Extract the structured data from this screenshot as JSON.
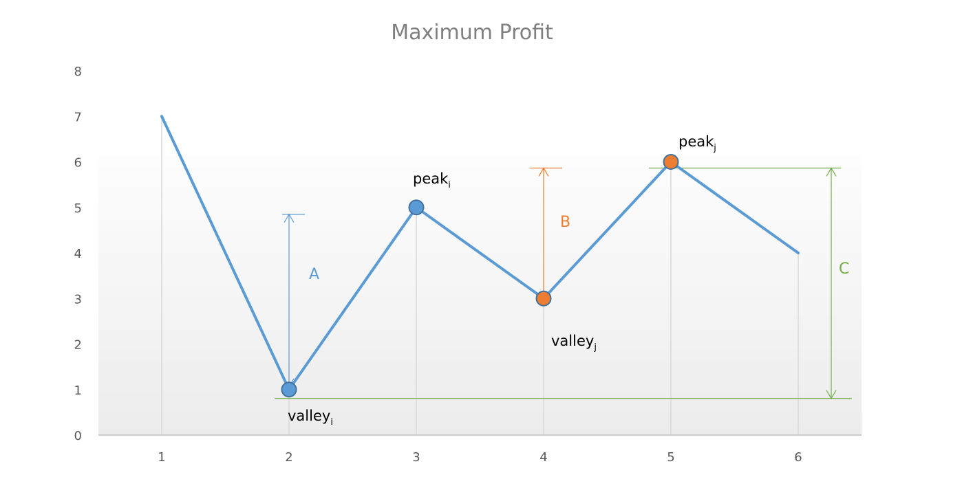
{
  "chart_data": {
    "type": "line",
    "title": "Maximum Profit",
    "xlabel": "",
    "ylabel": "",
    "x": [
      1,
      2,
      3,
      4,
      5,
      6
    ],
    "values": [
      7,
      1,
      5,
      3,
      6,
      4
    ],
    "ylim": [
      0,
      8
    ],
    "y_ticks": [
      "0",
      "1",
      "2",
      "3",
      "4",
      "5",
      "6",
      "7",
      "8"
    ],
    "x_ticks": [
      "1",
      "2",
      "3",
      "4",
      "5",
      "6"
    ],
    "grid": "vertical",
    "colors": {
      "line": "#5b9bd5",
      "marker_blue": "#5b9bd5",
      "marker_orange": "#ed7d31",
      "arrow_a": "#5b9bd5",
      "arrow_b": "#ed7d31",
      "arrow_c": "#70ad47",
      "grid": "#d9d9d9",
      "axis": "#bfbfbf"
    },
    "highlighted_points": [
      {
        "x": 2,
        "y": 1,
        "color": "blue"
      },
      {
        "x": 3,
        "y": 5,
        "color": "blue"
      },
      {
        "x": 4,
        "y": 3,
        "color": "orange"
      },
      {
        "x": 5,
        "y": 6,
        "color": "orange"
      }
    ],
    "annotations": [
      {
        "base": "peak",
        "sub": "i"
      },
      {
        "base": "valley",
        "sub": "i"
      },
      {
        "base": "peak",
        "sub": "j"
      },
      {
        "base": "valley",
        "sub": "j"
      },
      {
        "text": "A"
      },
      {
        "text": "B"
      },
      {
        "text": "C"
      }
    ]
  }
}
